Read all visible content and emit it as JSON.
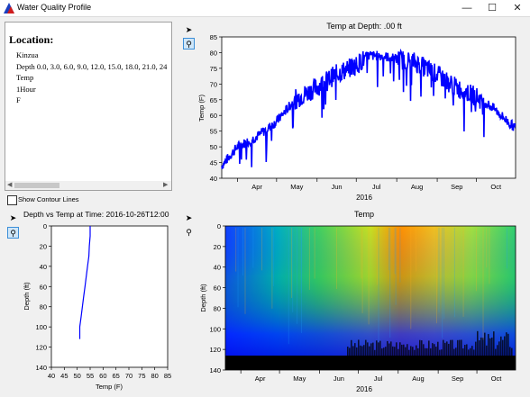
{
  "window": {
    "title": "Water Quality Profile",
    "minimize": "—",
    "maximize": "☐",
    "close": "✕"
  },
  "info_panel": {
    "heading": "Location:",
    "lines": [
      "Kinzua",
      "Depth 0.0, 3.0, 6.0, 9.0, 12.0, 15.0, 18.0, 21.0, 24",
      "Temp",
      "1Hour",
      "F"
    ]
  },
  "contour_checkbox": {
    "label": "Show Contour Lines",
    "checked": false
  },
  "toolbar_icons": {
    "pointer": "pointer-arrow-icon",
    "zoom": "magnifier-zoom-icon"
  },
  "colors": {
    "series": "#0000ff",
    "accent": "#3c8fd8"
  },
  "chart_data": [
    {
      "type": "line",
      "title": "Temp at Depth: .00 ft",
      "xlabel": "2016",
      "ylabel": "Temp (F)",
      "ylim": [
        40,
        85
      ],
      "yticks": [
        40,
        45,
        50,
        55,
        60,
        65,
        70,
        75,
        80,
        85
      ],
      "xticks": [
        "Apr",
        "May",
        "Jun",
        "Jul",
        "Aug",
        "Sep",
        "Oct"
      ],
      "xlim": [
        "2016-03-20",
        "2016-10-31"
      ],
      "series": [
        {
          "x": [
            "2016-03-20",
            "2016-04-01",
            "2016-04-15",
            "2016-05-01",
            "2016-05-15",
            "2016-06-01",
            "2016-06-15",
            "2016-07-01",
            "2016-07-10",
            "2016-07-20",
            "2016-08-01",
            "2016-08-15",
            "2016-09-01",
            "2016-09-15",
            "2016-10-01",
            "2016-10-15",
            "2016-10-25",
            "2016-10-31"
          ],
          "values": [
            44,
            50,
            53,
            58,
            65,
            69,
            73,
            76,
            79,
            79,
            78,
            77,
            73,
            69,
            66,
            62,
            58,
            56
          ]
        }
      ]
    },
    {
      "type": "line",
      "title": "Depth vs Temp at Time: 2016-10-26T12:00",
      "xlabel": "Temp (F)",
      "ylabel": "Depth (ft)",
      "xlim": [
        40,
        85
      ],
      "xticks": [
        40,
        45,
        50,
        55,
        60,
        65,
        70,
        75,
        80,
        85
      ],
      "ylim": [
        0,
        140
      ],
      "yticks": [
        0,
        20,
        40,
        60,
        80,
        100,
        120,
        140
      ],
      "series": [
        {
          "x": [
            55,
            55,
            54.7,
            54.5,
            54,
            53.5,
            53,
            52.5,
            52,
            51.5,
            51,
            51
          ],
          "y": [
            0,
            10,
            20,
            30,
            40,
            50,
            60,
            70,
            80,
            90,
            100,
            112
          ]
        }
      ]
    },
    {
      "type": "heatmap",
      "title": "Temp",
      "xlabel": "2016",
      "ylabel": "Depth (ft)",
      "yticks": [
        0,
        20,
        40,
        60,
        80,
        100,
        120,
        140
      ],
      "xticks": [
        "Apr",
        "May",
        "Jun",
        "Jul",
        "Aug",
        "Sep",
        "Oct"
      ],
      "ylim": [
        0,
        140
      ]
    }
  ]
}
